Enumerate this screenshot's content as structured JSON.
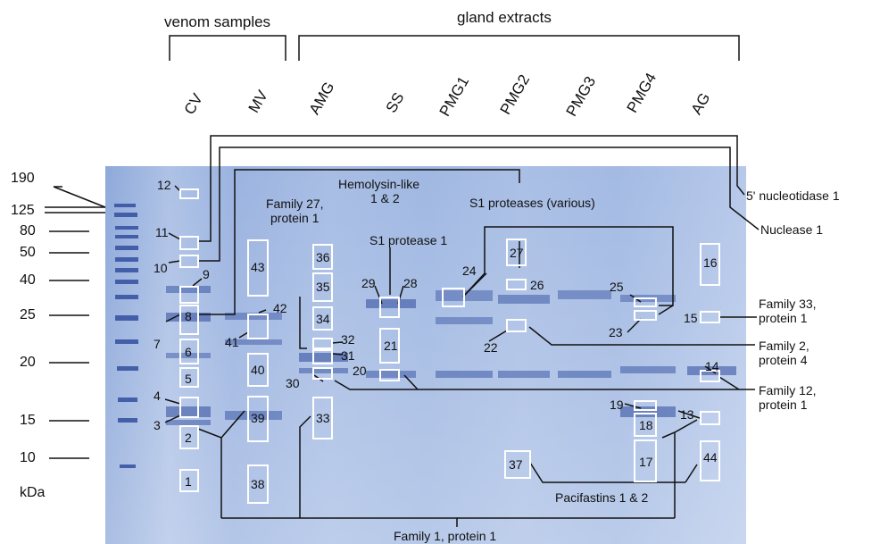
{
  "headers": {
    "venom": "venom samples",
    "gland": "gland extracts"
  },
  "lanes": [
    "CV",
    "MV",
    "AMG",
    "SS",
    "PMG1",
    "PMG2",
    "PMG3",
    "PMG4",
    "AG"
  ],
  "markers": [
    "190",
    "125",
    "80",
    "50",
    "40",
    "25",
    "20",
    "15",
    "10"
  ],
  "unit": "kDa",
  "bands": [
    "1",
    "2",
    "3",
    "4",
    "5",
    "6",
    "7",
    "8",
    "9",
    "10",
    "11",
    "12",
    "13",
    "14",
    "15",
    "16",
    "17",
    "18",
    "19",
    "20",
    "21",
    "22",
    "23",
    "24",
    "25",
    "26",
    "27",
    "28",
    "29",
    "30",
    "31",
    "32",
    "33",
    "34",
    "35",
    "36",
    "37",
    "38",
    "39",
    "40",
    "41",
    "42",
    "43",
    "44"
  ],
  "annotations": {
    "five_nucleotidase": "5' nucleotidase 1",
    "nuclease": "Nuclease 1",
    "hemolysin_1": "Hemolysin-like",
    "hemolysin_2": "1 & 2",
    "family27_1": "Family 27,",
    "family27_2": "protein 1",
    "s1_various": "S1 proteases (various)",
    "s1_protease": "S1 protease 1",
    "family33_1": "Family 33,",
    "family33_2": "protein 1",
    "family2_1": "Family 2,",
    "family2_2": "protein 4",
    "family12_1": "Family 12,",
    "family12_2": "protein 1",
    "pacifastins": "Pacifastins 1 & 2",
    "family1": "Family 1, protein 1"
  },
  "colors": {
    "gel_light": "#b9cbe8",
    "gel_mid": "#7d99d0",
    "band_dark": "#2f4b9c",
    "box": "#ffffff",
    "line": "#111111"
  }
}
